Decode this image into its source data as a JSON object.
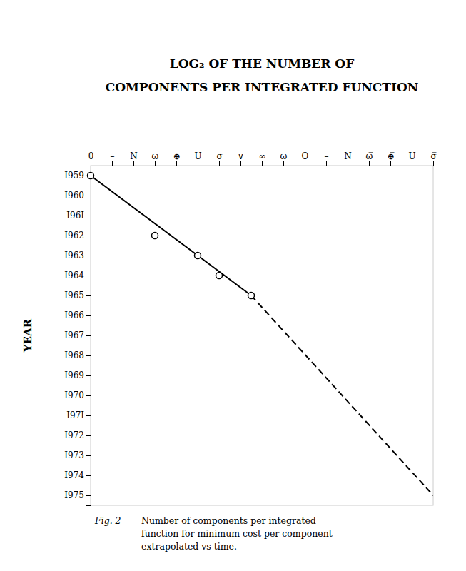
{
  "chart_data": {
    "type": "line",
    "title": "LOG₂ OF THE NUMBER OF",
    "subtitle": "COMPONENTS PER INTEGRATED FUNCTION",
    "y_label": "YEAR",
    "annotations": [
      "Fig. 2",
      "Number of components per integrated",
      "function for minimum cost per component",
      "extrapolated vs time."
    ],
    "xlim": [
      0,
      16
    ],
    "xticks": [
      0,
      {
        "value": 1,
        "label": "–"
      },
      {
        "value": 2,
        "label": "N"
      },
      {
        "value": 3,
        "label": "ω"
      },
      {
        "value": 4,
        "label": "⊕"
      },
      {
        "value": 5,
        "label": "U"
      },
      {
        "value": 6,
        "label": "σ"
      },
      {
        "value": 7,
        "label": "∨"
      },
      {
        "value": 8,
        "label": "∞"
      },
      {
        "value": 9,
        "label": "ω"
      },
      {
        "value": 10,
        "label": "Ō"
      },
      {
        "value": 11,
        "label": "–"
      },
      {
        "value": 12,
        "label": "N̅"
      },
      {
        "value": 13,
        "label": "ω̅"
      },
      {
        "value": 14,
        "label": "⊕̅"
      },
      {
        "value": 15,
        "label": "U̅"
      },
      {
        "value": 16,
        "label": "σ̅"
      }
    ],
    "ylim": [
      1975.5,
      1958.5
    ],
    "yticks": [
      {
        "value": 1959,
        "label": "I959"
      },
      {
        "value": 1960,
        "label": "I960"
      },
      {
        "value": 1961,
        "label": "I96I"
      },
      {
        "value": 1962,
        "label": "I962"
      },
      {
        "value": 1963,
        "label": "I963"
      },
      {
        "value": 1964,
        "label": "I964"
      },
      {
        "value": 1965,
        "label": "I965"
      },
      {
        "value": 1966,
        "label": "I966"
      },
      {
        "value": 1967,
        "label": "I967"
      },
      {
        "value": 1968,
        "label": "I968"
      },
      {
        "value": 1969,
        "label": "I969"
      },
      {
        "value": 1970,
        "label": "I970"
      },
      {
        "value": 1971,
        "label": "I97I"
      },
      {
        "value": 1972,
        "label": "I972"
      },
      {
        "value": 1973,
        "label": "I973"
      },
      {
        "value": 1974,
        "label": "I974"
      },
      {
        "value": 1975,
        "label": "I975"
      }
    ],
    "grid": false,
    "series": [
      {
        "type": "line",
        "line_style": "solid",
        "color": "#000000",
        "x": [
          0,
          7.5
        ],
        "values": [
          1959,
          1965
        ]
      },
      {
        "type": "line",
        "line_style": "dashed",
        "color": "#000000",
        "x": [
          7.5,
          16
        ],
        "values": [
          1965,
          1975
        ]
      },
      {
        "type": "scatter",
        "marker": "circle",
        "color": "#000000",
        "x": [
          0,
          3,
          5,
          6,
          7.5
        ],
        "values": [
          1959,
          1962,
          1963,
          1964,
          1965
        ]
      }
    ]
  }
}
